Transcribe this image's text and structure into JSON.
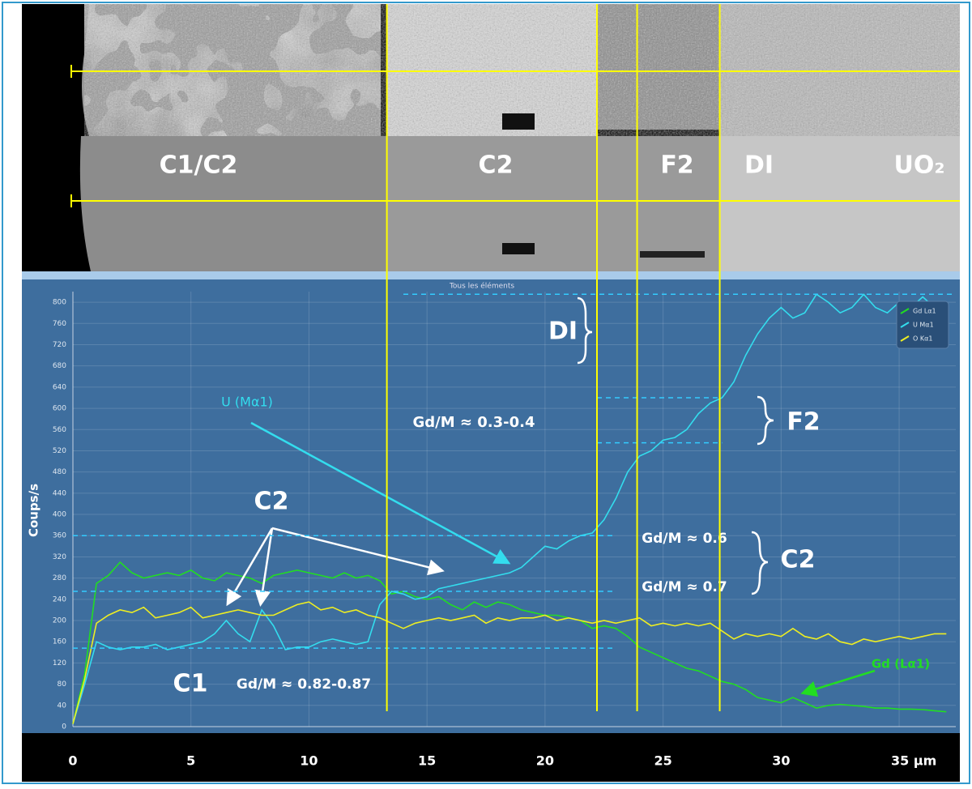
{
  "chart_data": {
    "type": "line",
    "title": "Tous les éléments",
    "y_label": "Coups/s",
    "image_labels": [
      "C1/C2",
      "C2",
      "F2",
      "DI",
      "UO₂"
    ],
    "x": [
      0,
      0.5,
      1,
      1.5,
      2,
      2.5,
      3,
      3.5,
      4,
      4.5,
      5,
      5.5,
      6,
      6.5,
      7,
      7.5,
      8,
      8.5,
      9,
      9.5,
      10,
      10.5,
      11,
      11.5,
      12,
      12.5,
      13,
      13.5,
      14,
      14.5,
      15,
      15.5,
      16,
      16.5,
      17,
      17.5,
      18,
      18.5,
      19,
      19.5,
      20,
      20.5,
      21,
      21.5,
      22,
      22.5,
      23,
      23.5,
      24,
      24.5,
      25,
      25.5,
      26,
      26.5,
      27,
      27.5,
      28,
      28.5,
      29,
      29.5,
      30,
      30.5,
      31,
      31.5,
      32,
      32.5,
      33,
      33.5,
      34,
      34.5,
      35,
      35.5,
      36,
      36.5,
      37
    ],
    "series": [
      {
        "name": "Gd Lα1",
        "color": "#22dd22",
        "values": [
          5,
          100,
          270,
          285,
          310,
          290,
          280,
          285,
          290,
          285,
          295,
          280,
          275,
          290,
          285,
          280,
          270,
          285,
          290,
          295,
          290,
          285,
          280,
          290,
          280,
          285,
          275,
          250,
          255,
          245,
          240,
          245,
          230,
          220,
          235,
          225,
          235,
          230,
          220,
          215,
          210,
          210,
          205,
          200,
          185,
          190,
          185,
          170,
          150,
          140,
          130,
          120,
          110,
          105,
          95,
          85,
          80,
          70,
          55,
          50,
          45,
          55,
          45,
          35,
          40,
          42,
          40,
          38,
          35,
          35,
          33,
          33,
          32,
          30,
          28
        ]
      },
      {
        "name": "U Mα1",
        "color": "#33ddee",
        "values": [
          5,
          80,
          160,
          150,
          145,
          150,
          150,
          155,
          145,
          150,
          155,
          160,
          175,
          200,
          175,
          160,
          220,
          190,
          145,
          150,
          150,
          160,
          165,
          160,
          155,
          160,
          230,
          255,
          250,
          240,
          245,
          260,
          265,
          270,
          275,
          280,
          285,
          290,
          300,
          320,
          340,
          335,
          350,
          360,
          365,
          390,
          430,
          480,
          510,
          520,
          540,
          545,
          560,
          590,
          610,
          620,
          650,
          700,
          740,
          770,
          790,
          770,
          780,
          815,
          800,
          780,
          790,
          815,
          790,
          780,
          800,
          790,
          810,
          790,
          785
        ]
      },
      {
        "name": "O Kα1",
        "color": "#eeee22",
        "values": [
          5,
          90,
          195,
          210,
          220,
          215,
          225,
          205,
          210,
          215,
          225,
          205,
          210,
          215,
          220,
          215,
          210,
          210,
          220,
          230,
          235,
          220,
          225,
          215,
          220,
          210,
          205,
          195,
          185,
          195,
          200,
          205,
          200,
          205,
          210,
          195,
          205,
          200,
          205,
          205,
          210,
          200,
          205,
          200,
          195,
          200,
          195,
          200,
          205,
          190,
          195,
          190,
          195,
          190,
          195,
          180,
          165,
          175,
          170,
          175,
          170,
          185,
          170,
          165,
          175,
          160,
          155,
          165,
          160,
          165,
          170,
          165,
          170,
          175,
          175
        ]
      }
    ],
    "xlim": [
      0,
      37.4
    ],
    "ylim": [
      0,
      820
    ],
    "xticks": [
      0,
      5,
      10,
      15,
      20,
      25,
      30,
      {
        "value": 35,
        "label": "35 µm"
      }
    ],
    "yticks": [
      0,
      40,
      80,
      120,
      160,
      200,
      240,
      280,
      320,
      360,
      400,
      440,
      480,
      520,
      560,
      600,
      640,
      680,
      720,
      760,
      800
    ],
    "grid": true,
    "legend": "top-right",
    "marker_lines_x": [
      13.3,
      22.2,
      23.9,
      27.4
    ],
    "reference_lines": [
      {
        "y": 815,
        "x": [
          14,
          37.4
        ]
      },
      {
        "y": 620,
        "x": [
          22.2,
          27.5
        ]
      },
      {
        "y": 535,
        "x": [
          22.2,
          27.5
        ]
      },
      {
        "y": 360,
        "x": [
          0,
          23
        ]
      },
      {
        "y": 255,
        "x": [
          0,
          23
        ]
      },
      {
        "y": 148,
        "x": [
          0,
          23
        ]
      }
    ],
    "annotations": [
      "U (Mα1)",
      "Gd/M ≈ 0.3-0.4",
      "DI",
      "F2",
      "C2",
      "Gd/M ≈ 0.6",
      "Gd/M ≈ 0.7",
      "C2",
      "C1",
      "Gd/M ≈ 0.82-0.87",
      "Gd (Lα1)"
    ]
  }
}
